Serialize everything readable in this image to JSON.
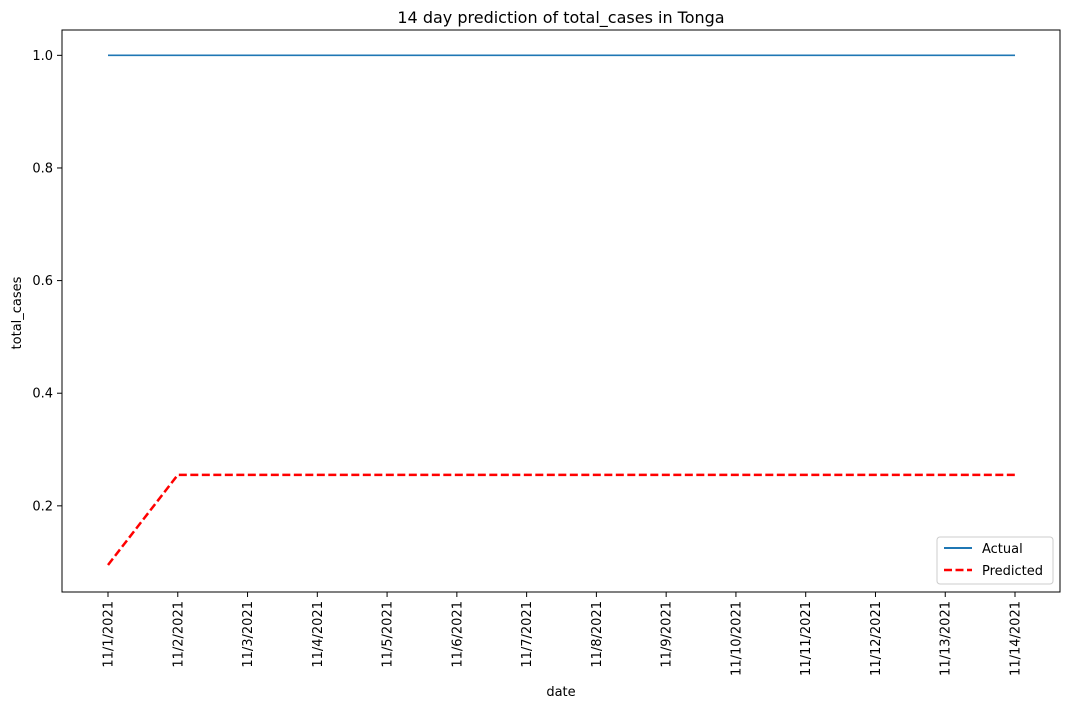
{
  "chart_data": {
    "type": "line",
    "title": "14 day prediction of total_cases in Tonga",
    "xlabel": "date",
    "ylabel": "total_cases",
    "x": [
      "11/1/2021",
      "11/2/2021",
      "11/3/2021",
      "11/4/2021",
      "11/5/2021",
      "11/6/2021",
      "11/7/2021",
      "11/8/2021",
      "11/9/2021",
      "11/10/2021",
      "11/11/2021",
      "11/12/2021",
      "11/13/2021",
      "11/14/2021"
    ],
    "yticks": [
      "0.2",
      "0.4",
      "0.6",
      "0.8",
      "1.0"
    ],
    "ylim": [
      0.047,
      1.045
    ],
    "grid": false,
    "legend_position": "lower right",
    "series": [
      {
        "name": "Actual",
        "color": "#1f77b4",
        "style": "solid",
        "values": [
          1.0,
          1.0,
          1.0,
          1.0,
          1.0,
          1.0,
          1.0,
          1.0,
          1.0,
          1.0,
          1.0,
          1.0,
          1.0,
          1.0
        ]
      },
      {
        "name": "Predicted",
        "color": "#ff0000",
        "style": "dashed",
        "values": [
          0.095,
          0.255,
          0.255,
          0.255,
          0.255,
          0.255,
          0.255,
          0.255,
          0.255,
          0.255,
          0.255,
          0.255,
          0.255,
          0.255
        ]
      }
    ]
  }
}
